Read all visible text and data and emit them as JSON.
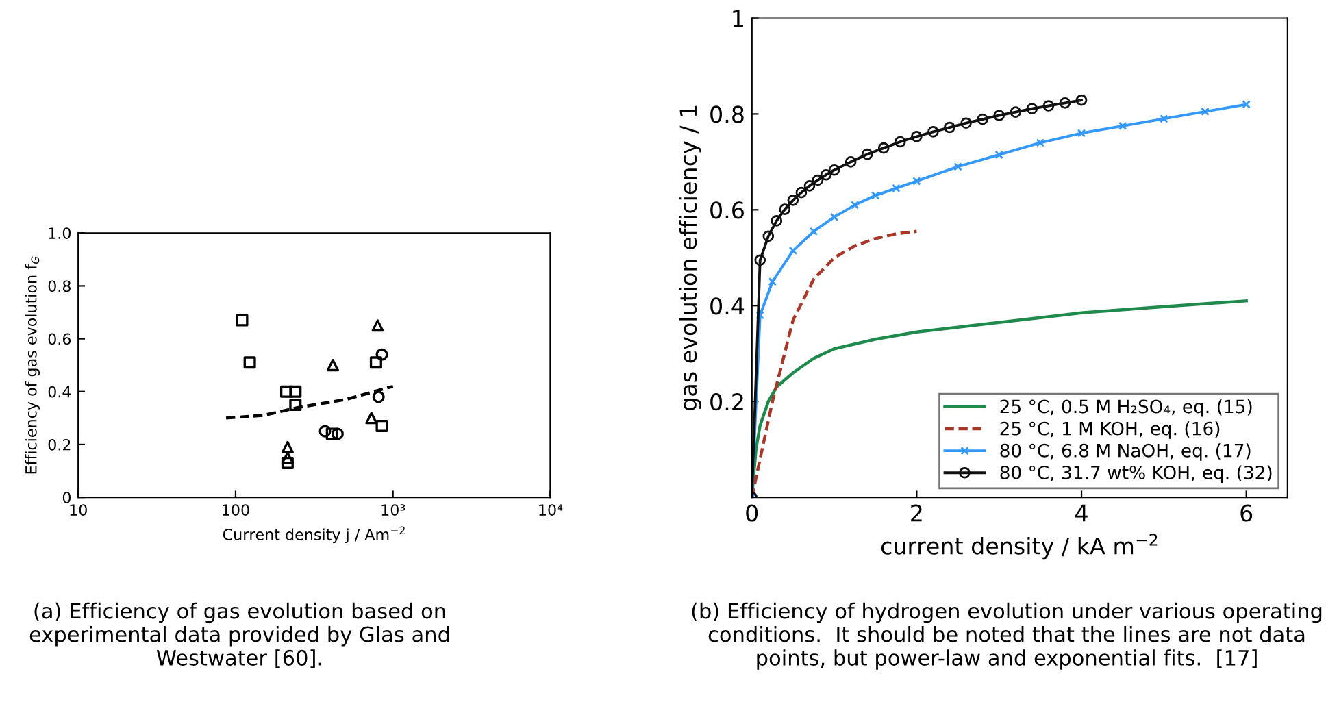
{
  "chart_data": [
    {
      "type": "scatter",
      "xlabel": "Current density j / Am$^{−2}$",
      "ylabel": "Efficiency of gas evolution f$_{G}$",
      "log": "x",
      "xlim": [
        10,
        10000
      ],
      "ylim": [
        0,
        1
      ],
      "xticks": [
        10,
        100,
        {
          "value": 1000,
          "label": "10³"
        },
        {
          "value": 10000,
          "label": "10⁴"
        }
      ],
      "yticks": [
        0,
        0.2,
        0.4,
        0.6,
        0.8,
        {
          "value": 1,
          "label": "1.0"
        }
      ],
      "grid": false,
      "legend": false,
      "series": [
        {
          "marker": "square",
          "color": "#000000",
          "x": [
            110,
            123,
            210,
            240,
            240,
            410,
            780,
            850,
            214
          ],
          "values": [
            0.67,
            0.51,
            0.4,
            0.4,
            0.35,
            0.24,
            0.51,
            0.27,
            0.13
          ]
        },
        {
          "marker": "circle",
          "color": "#000000",
          "x": [
            370,
            445,
            850,
            810
          ],
          "values": [
            0.25,
            0.24,
            0.54,
            0.38
          ]
        },
        {
          "marker": "triangle",
          "color": "#000000",
          "x": [
            415,
            800,
            730,
            214,
            214
          ],
          "values": [
            0.5,
            0.65,
            0.3,
            0.19,
            0.15
          ]
        },
        {
          "type": "line",
          "marker": "none",
          "line_style": "dashed",
          "color": "#000000",
          "x": [
            87,
            150,
            250,
            500,
            1000
          ],
          "values": [
            0.3,
            0.31,
            0.34,
            0.37,
            0.42
          ]
        }
      ],
      "annotations": [
        "(a) Efficiency of gas evolution based on experimental data provided by Glas and Westwater [60]."
      ]
    },
    {
      "type": "line",
      "xlabel": "current density / kA m$^{−2}$",
      "ylabel": "gas evolution efficiency / 1",
      "xlim": [
        0,
        6.5
      ],
      "ylim": [
        0,
        1
      ],
      "xticks": [
        0,
        2,
        4,
        6
      ],
      "yticks": [
        0.2,
        0.4,
        0.6,
        0.8,
        1
      ],
      "grid": false,
      "legend": "bottom right",
      "series": [
        {
          "name": "25 °C, 0.5 M H₂SO₄, eq. (15)",
          "marker": "none",
          "line_style": "solid",
          "color": "#1e8a4c",
          "x": [
            0,
            0.05,
            0.1,
            0.2,
            0.3,
            0.5,
            0.75,
            1,
            1.5,
            2,
            3,
            4,
            5,
            6
          ],
          "values": [
            0,
            0.1,
            0.15,
            0.2,
            0.23,
            0.26,
            0.29,
            0.31,
            0.33,
            0.345,
            0.365,
            0.385,
            0.398,
            0.41
          ]
        },
        {
          "name": "25 °C, 1 M KOH, eq. (16)",
          "marker": "none",
          "line_style": "dashed",
          "color": "#a8372a",
          "x": [
            0,
            0.1,
            0.25,
            0.5,
            0.75,
            1,
            1.25,
            1.5,
            1.75,
            2
          ],
          "values": [
            0,
            0.08,
            0.2,
            0.37,
            0.455,
            0.5,
            0.525,
            0.54,
            0.55,
            0.555
          ]
        },
        {
          "name": "80 °C, 6.8 M NaOH, eq. (17)",
          "marker": "cross",
          "line_style": "solid",
          "color": "#3399ff",
          "x": [
            0,
            0.1,
            0.25,
            0.5,
            0.75,
            1,
            1.25,
            1.5,
            1.75,
            2,
            2.5,
            3,
            3.5,
            4,
            4.5,
            5,
            5.5,
            6
          ],
          "values": [
            0,
            0.38,
            0.45,
            0.515,
            0.555,
            0.585,
            0.61,
            0.63,
            0.645,
            0.66,
            0.69,
            0.715,
            0.74,
            0.76,
            0.775,
            0.79,
            0.805,
            0.82
          ]
        },
        {
          "name": "80 °C, 31.7 wt% KOH, eq. (32)",
          "marker": "circle",
          "line_style": "solid",
          "color": "#111111",
          "x": [
            0,
            0.1,
            0.2,
            0.3,
            0.4,
            0.5,
            0.6,
            0.7,
            0.8,
            0.9,
            1,
            1.2,
            1.4,
            1.6,
            1.8,
            2,
            2.2,
            2.4,
            2.6,
            2.8,
            3,
            3.2,
            3.4,
            3.6,
            3.8,
            4
          ],
          "values": [
            0,
            0.495,
            0.545,
            0.577,
            0.601,
            0.62,
            0.636,
            0.65,
            0.662,
            0.673,
            0.683,
            0.7,
            0.716,
            0.729,
            0.742,
            0.753,
            0.763,
            0.772,
            0.781,
            0.789,
            0.797,
            0.804,
            0.811,
            0.817,
            0.823,
            0.829
          ]
        }
      ],
      "annotations": [
        "(b) Efficiency of hydrogen evolution under various operating conditions.  It should be noted that the lines are not data points, but power-law and exponential fits.  [17]"
      ]
    }
  ]
}
